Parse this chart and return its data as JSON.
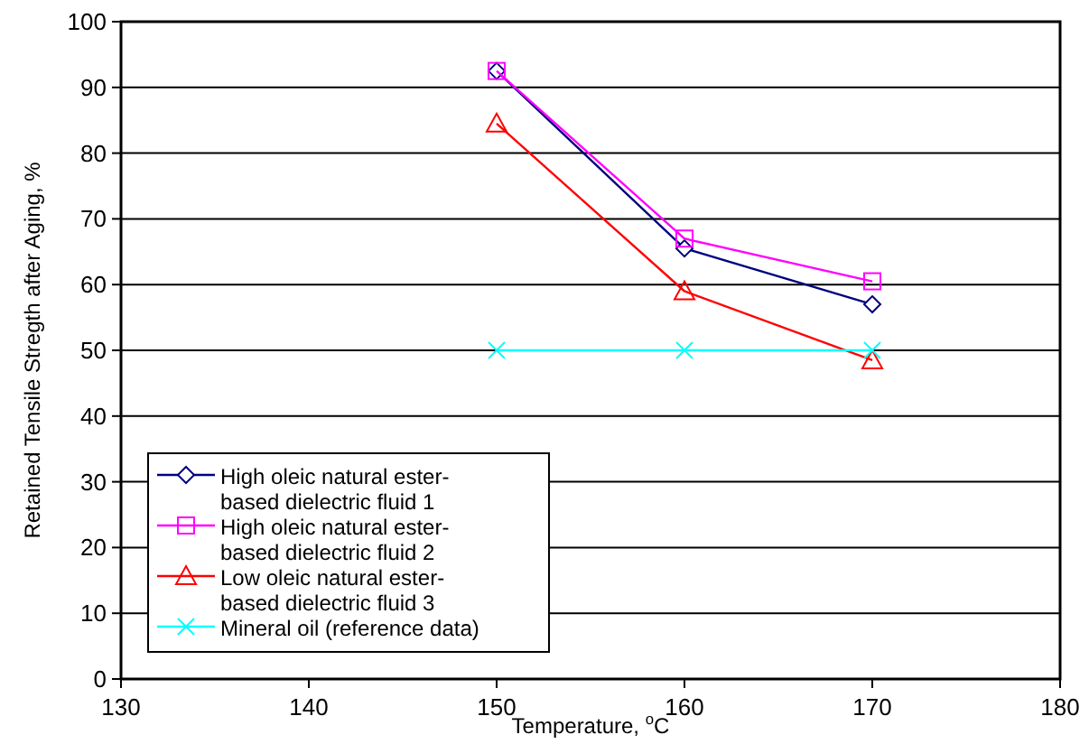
{
  "chart_data": {
    "type": "line",
    "xlabel": "Temperature, $^{o}$C",
    "ylabel": "Retained Tensile Stregth after Aging, %",
    "x": [
      150,
      160,
      170
    ],
    "series": [
      {
        "name": "High oleic natural ester-based dielectric  fluid  1",
        "color": "#000080",
        "marker": "diamond",
        "values": [
          92.5,
          65.5,
          57
        ]
      },
      {
        "name": "High oleic natural ester-based dielectric fluid 2",
        "color": "#ff00ff",
        "marker": "square",
        "values": [
          92.5,
          67,
          60.5
        ]
      },
      {
        "name": "Low oleic natural ester-based dielectric fluid 3",
        "color": "#ff0000",
        "marker": "triangle",
        "values": [
          84.5,
          59,
          48.5
        ]
      },
      {
        "name": "Mineral oil (reference data)",
        "color": "#00ffff",
        "marker": "cross",
        "values": [
          50,
          50,
          50
        ]
      }
    ],
    "xlim": [
      130,
      180
    ],
    "xticks": [
      130,
      140,
      150,
      160,
      170,
      180
    ],
    "ylim": [
      0,
      100
    ],
    "yticks": [
      0,
      10,
      20,
      30,
      40,
      50,
      60,
      70,
      80,
      90,
      100
    ],
    "grid": "y",
    "legend": "bottom left",
    "line_style": "solid"
  }
}
